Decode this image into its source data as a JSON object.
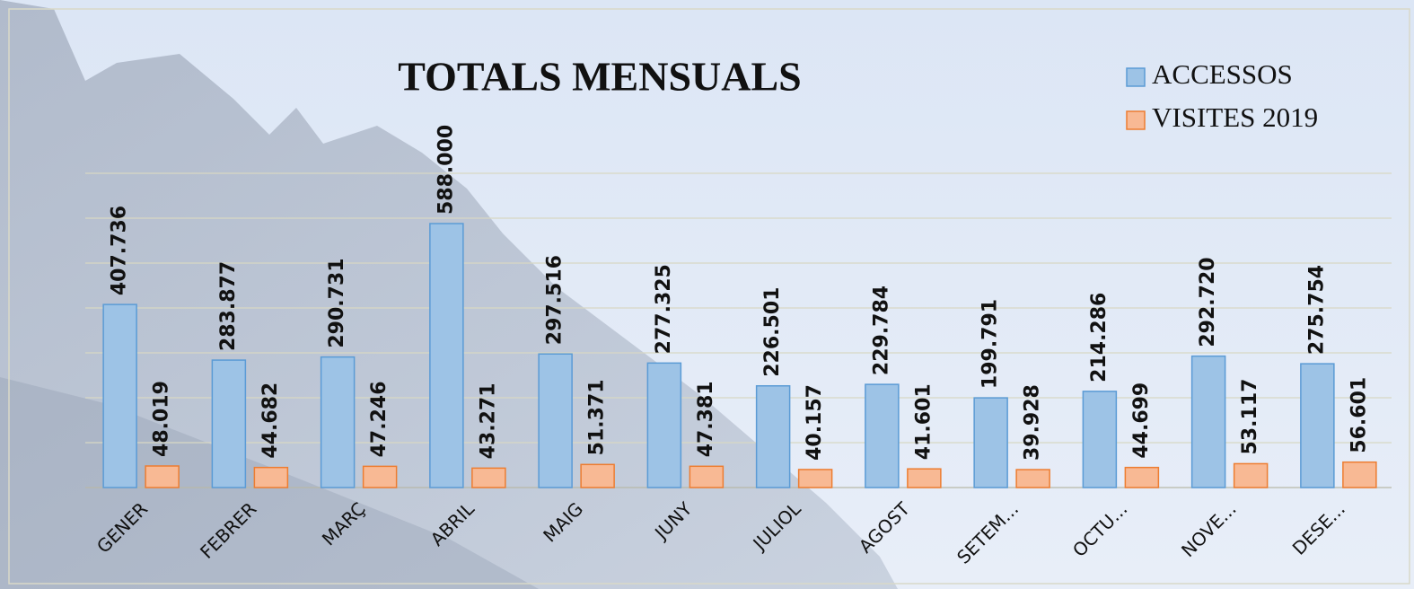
{
  "chart_data": {
    "type": "bar",
    "title": "TOTALS MENSUALS",
    "categories": [
      "GENER",
      "FEBRER",
      "MARÇ",
      "ABRIL",
      "MAIG",
      "JUNY",
      "JULIOL",
      "AGOST",
      "SETEM...",
      "OCTU...",
      "NOVE...",
      "DESE..."
    ],
    "series": [
      {
        "name": "ACCESSOS",
        "color": "#9dc3e6",
        "stroke": "#5b9bd5",
        "values": [
          407736,
          283877,
          290731,
          588000,
          297516,
          277325,
          226501,
          229784,
          199791,
          214286,
          292720,
          275754
        ],
        "value_labels": [
          "407.736",
          "283.877",
          "290.731",
          "588.000",
          "297.516",
          "277.325",
          "226.501",
          "229.784",
          "199.791",
          "214.286",
          "292.720",
          "275.754"
        ]
      },
      {
        "name": "VISITES 2019",
        "color": "#f8b994",
        "stroke": "#ed7d31",
        "values": [
          48019,
          44682,
          47246,
          43271,
          51371,
          47381,
          40157,
          41601,
          39928,
          44699,
          53117,
          56601
        ],
        "value_labels": [
          "48.019",
          "44.682",
          "47.246",
          "43.271",
          "51.371",
          "47.381",
          "40.157",
          "41.601",
          "39.928",
          "44.699",
          "53.117",
          "56.601"
        ]
      }
    ],
    "ylim": [
      0,
      700000
    ],
    "yticks": [
      0,
      100000,
      200000,
      300000,
      400000,
      500000,
      600000,
      700000
    ],
    "grid": true,
    "legend": "top-right"
  }
}
